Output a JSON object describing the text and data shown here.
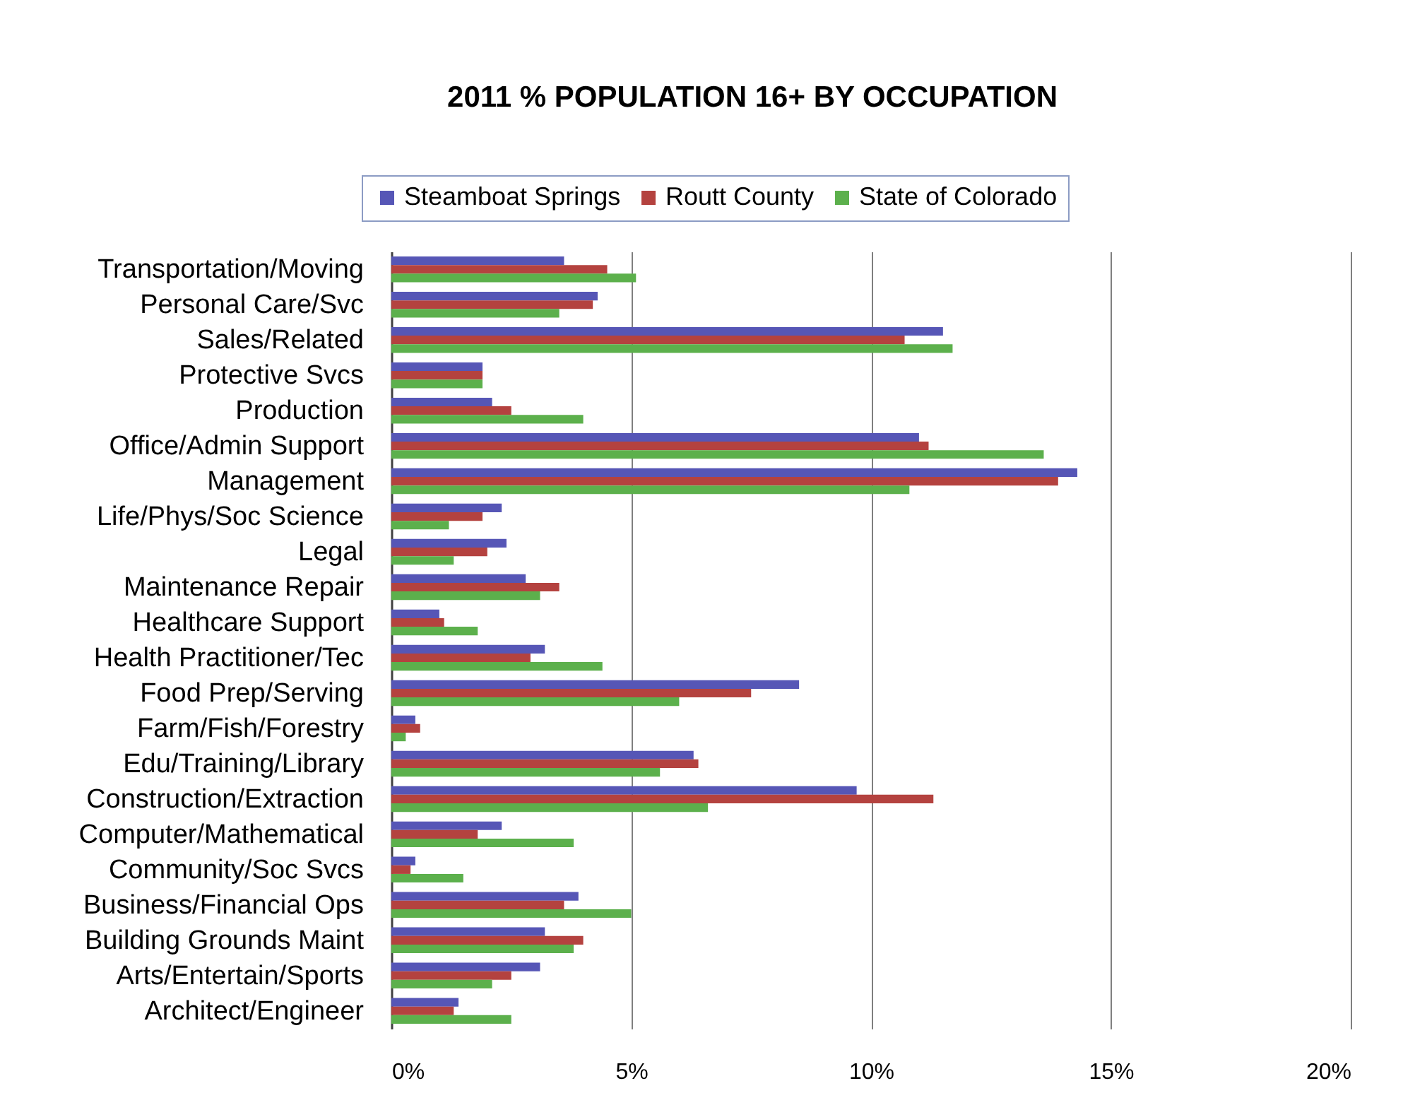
{
  "chart_data": {
    "type": "bar",
    "orientation": "horizontal",
    "title": "2011 % POPULATION 16+ BY OCCUPATION",
    "categories": [
      "Transportation/Moving",
      "Personal Care/Svc",
      "Sales/Related",
      "Protective Svcs",
      "Production",
      "Office/Admin Support",
      "Management",
      "Life/Phys/Soc Science",
      "Legal",
      "Maintenance Repair",
      "Healthcare Support",
      "Health Practitioner/Tec",
      "Food Prep/Serving",
      "Farm/Fish/Forestry",
      "Edu/Training/Library",
      "Construction/Extraction",
      "Computer/Mathematical",
      "Community/Soc Svcs",
      "Business/Financial Ops",
      "Building Grounds Maint",
      "Arts/Entertain/Sports",
      "Architect/Engineer"
    ],
    "series": [
      {
        "name": "Steamboat Springs",
        "color": "#5656b6",
        "values": [
          3.6,
          4.3,
          11.5,
          1.9,
          2.1,
          11.0,
          14.3,
          2.3,
          2.4,
          2.8,
          1.0,
          3.2,
          8.5,
          0.5,
          6.3,
          9.7,
          2.3,
          0.5,
          3.9,
          3.2,
          3.1,
          1.4
        ]
      },
      {
        "name": "Routt County",
        "color": "#b4423f",
        "values": [
          4.5,
          4.2,
          10.7,
          1.9,
          2.5,
          11.2,
          13.9,
          1.9,
          2.0,
          3.5,
          1.1,
          2.9,
          7.5,
          0.6,
          6.4,
          11.3,
          1.8,
          0.4,
          3.6,
          4.0,
          2.5,
          1.3
        ]
      },
      {
        "name": "State of Colorado",
        "color": "#5cb04c",
        "values": [
          5.1,
          3.5,
          11.7,
          1.9,
          4.0,
          13.6,
          10.8,
          1.2,
          1.3,
          3.1,
          1.8,
          4.4,
          6.0,
          0.3,
          5.6,
          6.6,
          3.8,
          1.5,
          5.0,
          3.8,
          2.1,
          2.5
        ]
      }
    ],
    "xlim": [
      0,
      20
    ],
    "xticks": [
      {
        "value": 0,
        "label": "0%"
      },
      {
        "value": 5,
        "label": "5%"
      },
      {
        "value": 10,
        "label": "10%"
      },
      {
        "value": 15,
        "label": "15%"
      },
      {
        "value": 20,
        "label": "20%"
      }
    ],
    "grid": "x",
    "legend": "top"
  }
}
